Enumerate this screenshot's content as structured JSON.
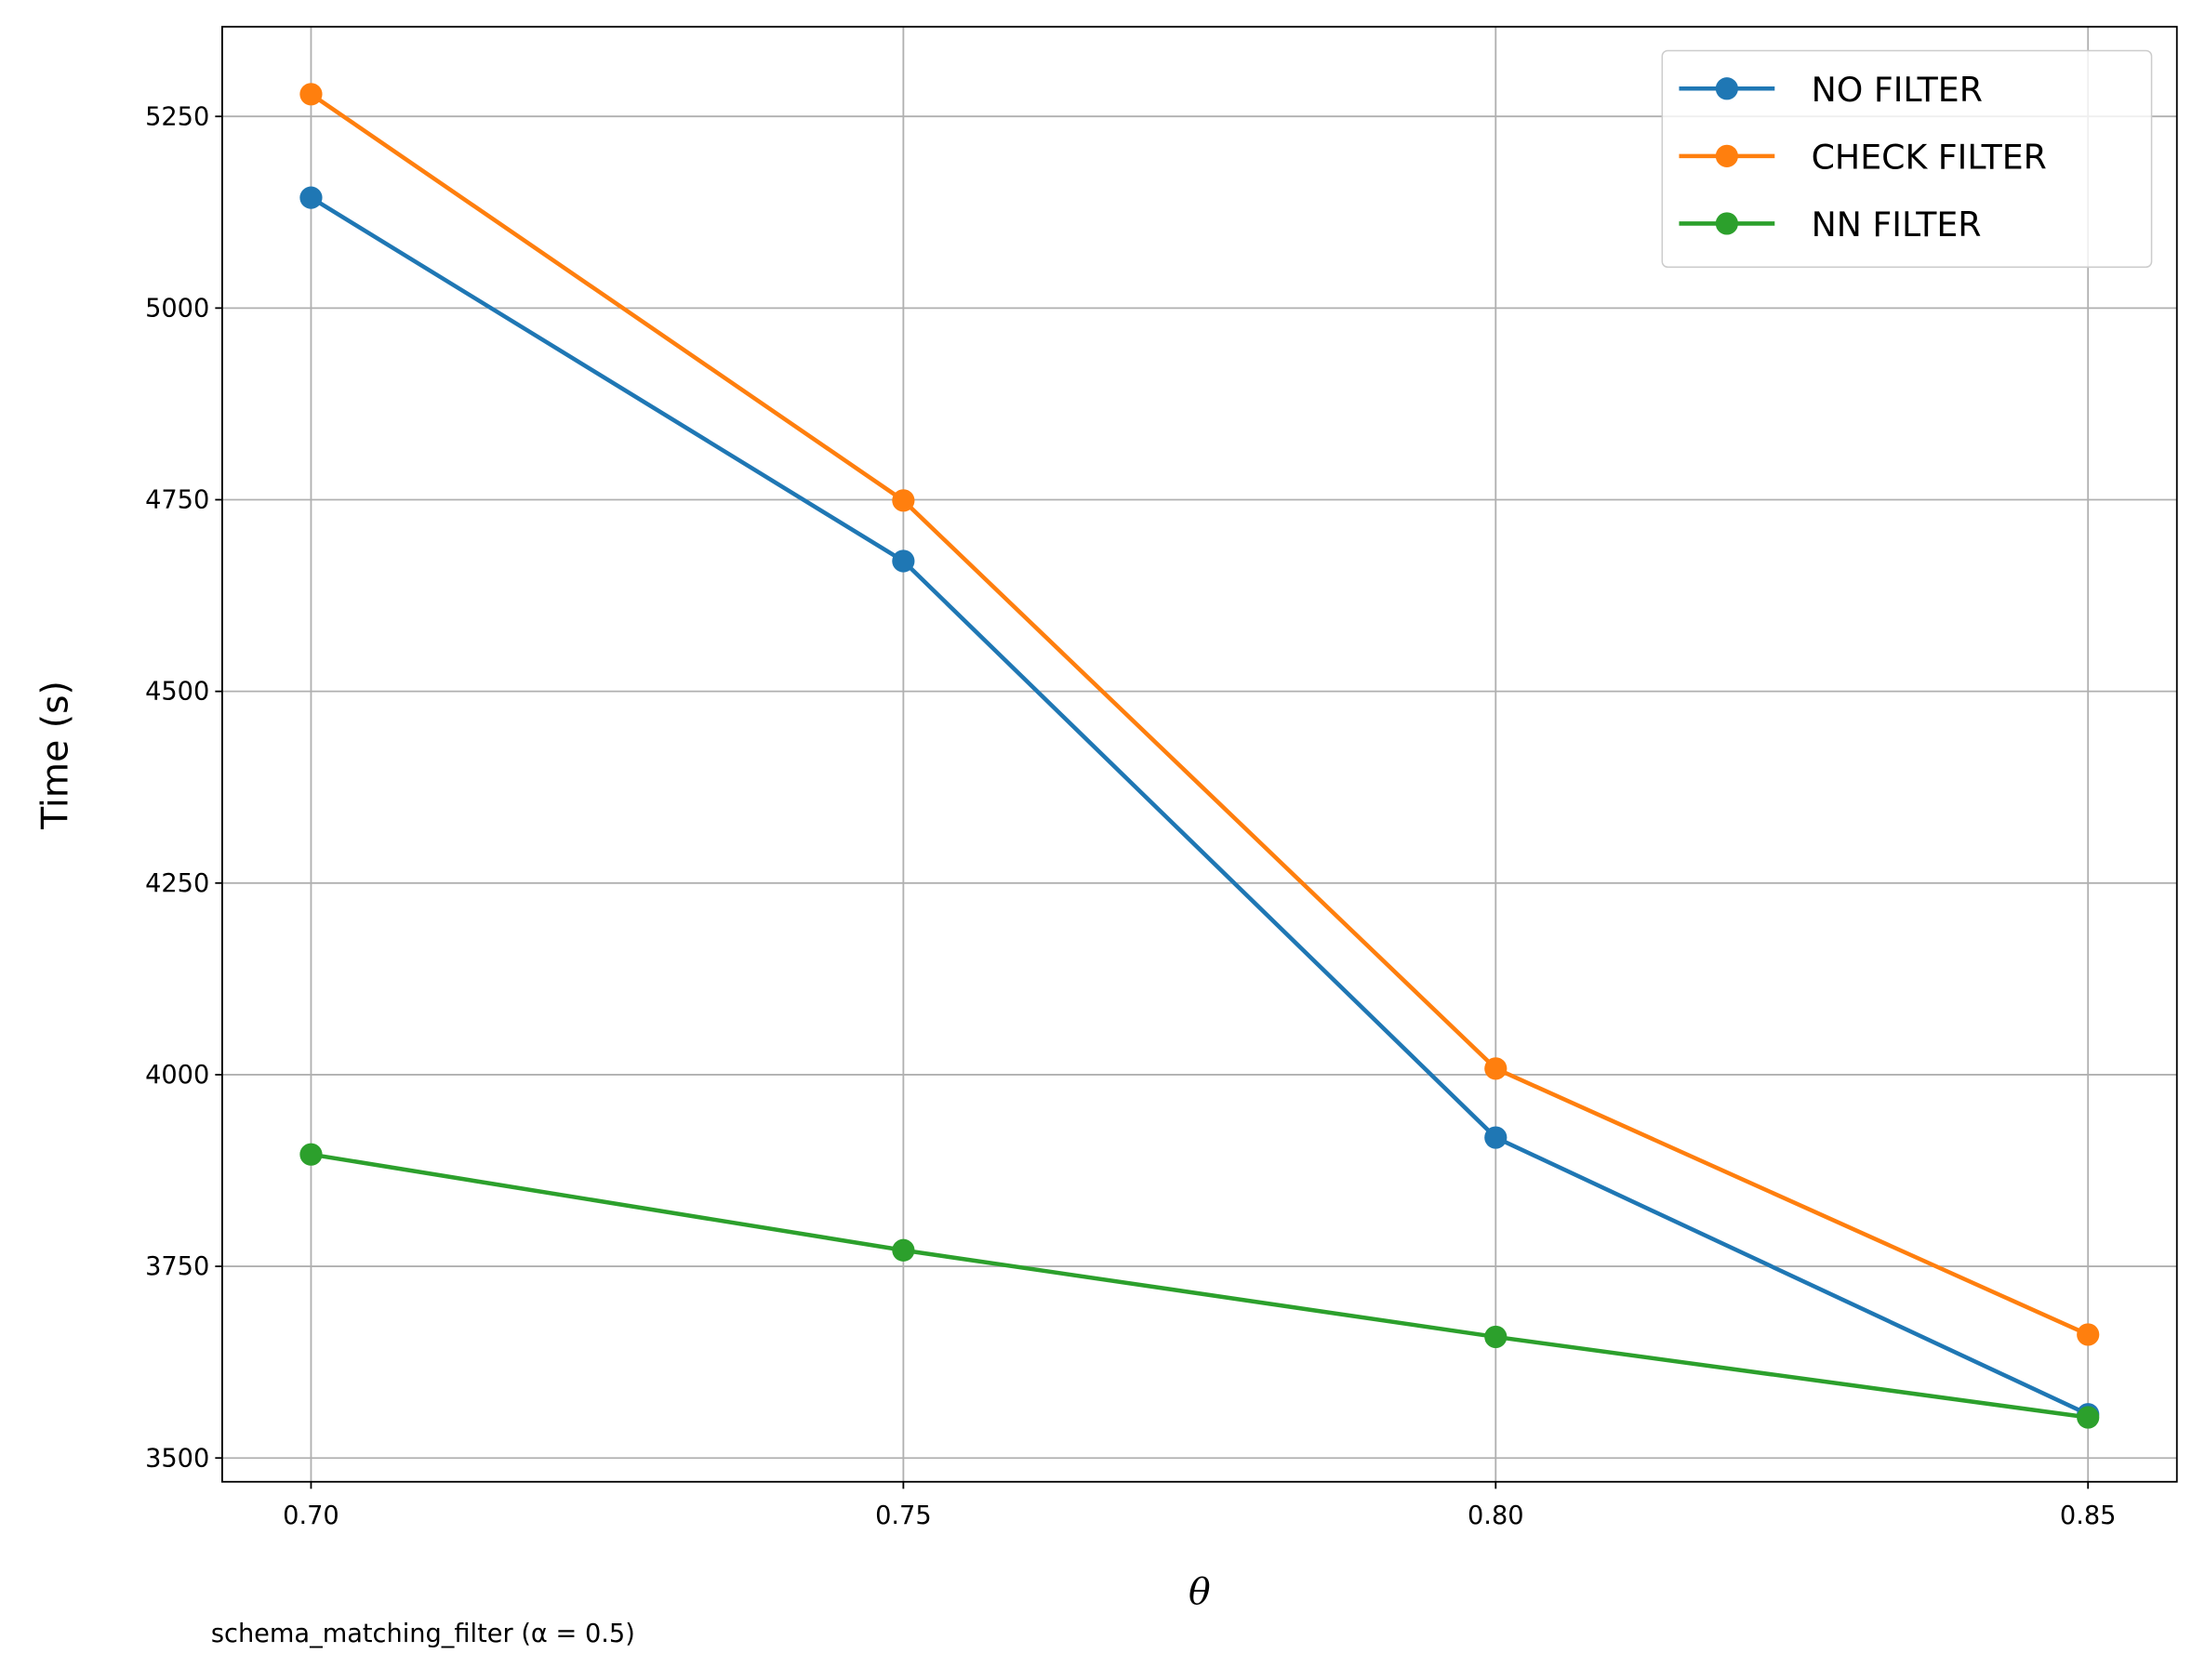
{
  "chart_data": {
    "type": "line",
    "title": "",
    "xlabel": "θ",
    "ylabel": "Time (s)",
    "caption": "schema_matching_filter (α = 0.5)",
    "x": [
      0.7,
      0.75,
      0.8,
      0.85
    ],
    "x_tick_labels": [
      "0.70",
      "0.75",
      "0.80",
      "0.85"
    ],
    "y_ticks": [
      3500,
      3750,
      4000,
      4250,
      4500,
      4750,
      5000,
      5250
    ],
    "y_tick_labels": [
      "3500",
      "3750",
      "4000",
      "4250",
      "4500",
      "4750",
      "5000",
      "5250"
    ],
    "xlim": [
      0.6925,
      0.8575
    ],
    "ylim": [
      3469,
      5367
    ],
    "grid": true,
    "legend_position": "top-right",
    "series": [
      {
        "name": "NO FILTER",
        "color": "#1f77b4",
        "values": [
          5144,
          4670,
          3918,
          3557
        ]
      },
      {
        "name": "CHECK FILTER",
        "color": "#ff7f0e",
        "values": [
          5279,
          4749,
          4008,
          3661
        ]
      },
      {
        "name": "NN FILTER",
        "color": "#2ca02c",
        "values": [
          3896,
          3771,
          3658,
          3553
        ]
      }
    ]
  }
}
